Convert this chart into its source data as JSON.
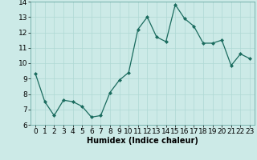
{
  "x": [
    0,
    1,
    2,
    3,
    4,
    5,
    6,
    7,
    8,
    9,
    10,
    11,
    12,
    13,
    14,
    15,
    16,
    17,
    18,
    19,
    20,
    21,
    22,
    23
  ],
  "y": [
    9.3,
    7.5,
    6.6,
    7.6,
    7.5,
    7.2,
    6.5,
    6.6,
    8.1,
    8.9,
    9.4,
    12.2,
    13.0,
    11.7,
    11.4,
    13.8,
    12.9,
    12.4,
    11.3,
    11.3,
    11.5,
    9.85,
    10.6,
    10.3
  ],
  "line_color": "#1a6b5e",
  "marker": "D",
  "marker_size": 2,
  "bg_color": "#cceae7",
  "grid_color": "#aed8d4",
  "xlabel": "Humidex (Indice chaleur)",
  "xlim": [
    -0.5,
    23.5
  ],
  "ylim": [
    6,
    14
  ],
  "yticks": [
    6,
    7,
    8,
    9,
    10,
    11,
    12,
    13,
    14
  ],
  "xticks": [
    0,
    1,
    2,
    3,
    4,
    5,
    6,
    7,
    8,
    9,
    10,
    11,
    12,
    13,
    14,
    15,
    16,
    17,
    18,
    19,
    20,
    21,
    22,
    23
  ],
  "xlabel_fontsize": 7,
  "tick_fontsize": 6.5
}
